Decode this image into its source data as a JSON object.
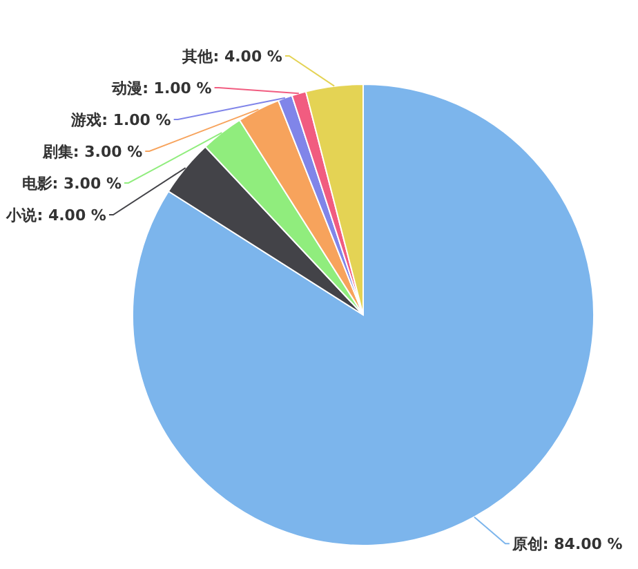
{
  "chart_data": {
    "type": "pie",
    "categories": [
      "原创",
      "小说",
      "电影",
      "剧集",
      "游戏",
      "动漫",
      "其他"
    ],
    "values": [
      84,
      4,
      3,
      3,
      1,
      1,
      4
    ],
    "colors": [
      "#7cb5ec",
      "#434348",
      "#90ed7d",
      "#f7a35c",
      "#8085e9",
      "#f15c80",
      "#e4d354"
    ],
    "value_labels": [
      "84.00 %",
      "4.00 %",
      "3.00 %",
      "3.00 %",
      "1.00 %",
      "1.00 %",
      "4.00 %"
    ]
  }
}
